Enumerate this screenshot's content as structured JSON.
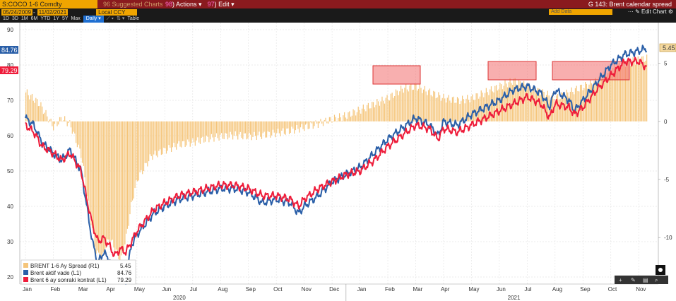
{
  "toolbar": {
    "ticker": "S:COCO 1-6 Comdty",
    "suggested": "96 Suggested Charts",
    "actions_num": "98",
    "actions_label": "Actions",
    "edit_num": "97",
    "edit_label": "Edit",
    "title": "G 143: Brent calendar spread"
  },
  "range": {
    "start": "05/24/2009",
    "end": "11/02/2021",
    "currency": "Local CCY",
    "add_data": "Add Data",
    "edit_chart": "Edit Chart"
  },
  "periods": [
    "1D",
    "3D",
    "1M",
    "6M",
    "YTD",
    "1Y",
    "5Y",
    "Max",
    "Daily"
  ],
  "period_extras": [
    "Table"
  ],
  "accent": "#f0a500",
  "chart_data": {
    "type": "line",
    "left_axis": {
      "ticks": [
        20,
        30,
        40,
        50,
        60,
        70,
        80,
        90
      ],
      "ylim": [
        18,
        92
      ]
    },
    "right_axis": {
      "ticks": [
        "5",
        "0",
        "-5",
        "-10"
      ],
      "ylim": [
        -14,
        8.5
      ]
    },
    "x_months": [
      "Jan",
      "Feb",
      "Mar",
      "Apr",
      "May",
      "Jun",
      "Jul",
      "Aug",
      "Sep",
      "Oct",
      "Nov",
      "Dec",
      "Jan",
      "Feb",
      "Mar",
      "Apr",
      "May",
      "Jun",
      "Jul",
      "Aug",
      "Sep",
      "Oct",
      "Nov"
    ],
    "x_years": [
      "2020",
      "2021"
    ],
    "last_labels": {
      "blue": "84.76",
      "red": "79.29",
      "spread": "5.45"
    },
    "series": [
      {
        "name": "Brent aktif vade (L1)",
        "color": "#2a5fa8",
        "axis": "left",
        "points": [
          [
            0,
            65
          ],
          [
            0.3,
            63
          ],
          [
            0.6,
            58
          ],
          [
            1,
            55
          ],
          [
            1.3,
            53
          ],
          [
            1.6,
            56
          ],
          [
            2,
            50
          ],
          [
            2.2,
            40
          ],
          [
            2.4,
            30
          ],
          [
            2.6,
            24
          ],
          [
            2.8,
            27
          ],
          [
            3,
            25
          ],
          [
            3.2,
            21
          ],
          [
            3.4,
            24
          ],
          [
            3.6,
            19
          ],
          [
            3.8,
            29
          ],
          [
            4,
            32
          ],
          [
            4.3,
            35
          ],
          [
            4.6,
            38
          ],
          [
            5,
            40
          ],
          [
            5.5,
            42
          ],
          [
            6,
            43
          ],
          [
            6.5,
            44
          ],
          [
            7,
            45
          ],
          [
            7.5,
            45
          ],
          [
            8,
            44
          ],
          [
            8.5,
            41
          ],
          [
            9,
            42
          ],
          [
            9.5,
            41
          ],
          [
            9.8,
            38
          ],
          [
            10,
            40
          ],
          [
            10.5,
            43
          ],
          [
            11,
            47
          ],
          [
            11.5,
            49
          ],
          [
            12,
            51
          ],
          [
            12.5,
            55
          ],
          [
            13,
            59
          ],
          [
            13.5,
            62
          ],
          [
            14,
            65
          ],
          [
            14.5,
            63
          ],
          [
            14.8,
            60
          ],
          [
            15,
            64
          ],
          [
            15.5,
            63
          ],
          [
            16,
            66
          ],
          [
            16.5,
            68
          ],
          [
            17,
            70
          ],
          [
            17.5,
            73
          ],
          [
            18,
            74
          ],
          [
            18.5,
            72
          ],
          [
            18.8,
            68
          ],
          [
            19,
            73
          ],
          [
            19.5,
            70
          ],
          [
            19.7,
            67
          ],
          [
            20,
            70
          ],
          [
            20.5,
            75
          ],
          [
            21,
            80
          ],
          [
            21.5,
            83
          ],
          [
            22,
            84
          ],
          [
            22.3,
            84.76
          ]
        ]
      },
      {
        "name": "Brent 6 ay sonraki kontrat (L1)",
        "color": "#ee1c3a",
        "axis": "left",
        "points": [
          [
            0,
            63
          ],
          [
            0.3,
            61
          ],
          [
            0.6,
            57
          ],
          [
            1,
            55
          ],
          [
            1.3,
            53
          ],
          [
            1.6,
            55
          ],
          [
            2,
            50
          ],
          [
            2.2,
            42
          ],
          [
            2.4,
            35
          ],
          [
            2.6,
            30
          ],
          [
            2.8,
            31
          ],
          [
            3,
            29
          ],
          [
            3.2,
            26
          ],
          [
            3.4,
            28
          ],
          [
            3.6,
            27
          ],
          [
            3.8,
            30
          ],
          [
            4,
            33
          ],
          [
            4.3,
            36
          ],
          [
            4.6,
            39
          ],
          [
            5,
            41
          ],
          [
            5.5,
            43
          ],
          [
            6,
            44
          ],
          [
            6.5,
            45
          ],
          [
            7,
            46
          ],
          [
            7.5,
            46
          ],
          [
            8,
            45
          ],
          [
            8.5,
            43
          ],
          [
            9,
            43
          ],
          [
            9.5,
            42
          ],
          [
            9.8,
            40
          ],
          [
            10,
            42
          ],
          [
            10.5,
            45
          ],
          [
            11,
            47
          ],
          [
            11.5,
            49
          ],
          [
            12,
            50
          ],
          [
            12.5,
            53
          ],
          [
            13,
            57
          ],
          [
            13.5,
            60
          ],
          [
            14,
            63
          ],
          [
            14.5,
            62
          ],
          [
            14.8,
            59
          ],
          [
            15,
            62
          ],
          [
            15.5,
            61
          ],
          [
            16,
            63
          ],
          [
            16.5,
            65
          ],
          [
            17,
            67
          ],
          [
            17.5,
            69
          ],
          [
            18,
            71
          ],
          [
            18.5,
            69
          ],
          [
            18.8,
            65
          ],
          [
            19,
            69
          ],
          [
            19.5,
            68
          ],
          [
            19.7,
            66
          ],
          [
            20,
            68
          ],
          [
            20.5,
            73
          ],
          [
            21,
            77
          ],
          [
            21.5,
            81
          ],
          [
            22,
            81
          ],
          [
            22.3,
            79.29
          ]
        ]
      },
      {
        "name": "BRENT 1-6 Ay Spread (R1)",
        "color": "#f5c57a",
        "axis": "right",
        "type": "bar",
        "points": [
          [
            0,
            2.5
          ],
          [
            0.5,
            1.5
          ],
          [
            1,
            -0.5
          ],
          [
            1.3,
            0.3
          ],
          [
            1.6,
            -0.3
          ],
          [
            2,
            -3
          ],
          [
            2.3,
            -8
          ],
          [
            2.5,
            -11
          ],
          [
            2.7,
            -12
          ],
          [
            3,
            -10
          ],
          [
            3.2,
            -11
          ],
          [
            3.4,
            -12
          ],
          [
            3.6,
            -10
          ],
          [
            3.8,
            -7
          ],
          [
            4,
            -5
          ],
          [
            4.5,
            -3
          ],
          [
            5,
            -2.5
          ],
          [
            5.5,
            -2
          ],
          [
            6,
            -1.8
          ],
          [
            6.5,
            -1.5
          ],
          [
            7,
            -1.3
          ],
          [
            7.5,
            -1.2
          ],
          [
            8,
            -1.3
          ],
          [
            8.5,
            -1.2
          ],
          [
            9,
            -1
          ],
          [
            9.5,
            -0.8
          ],
          [
            10,
            -0.5
          ],
          [
            10.5,
            -0.2
          ],
          [
            11,
            0.2
          ],
          [
            11.5,
            0.5
          ],
          [
            12,
            1
          ],
          [
            12.5,
            1.5
          ],
          [
            13,
            2
          ],
          [
            13.5,
            2.8
          ],
          [
            14,
            3
          ],
          [
            14.5,
            2.5
          ],
          [
            15,
            2
          ],
          [
            15.5,
            1.8
          ],
          [
            16,
            2
          ],
          [
            16.5,
            2.5
          ],
          [
            17,
            3
          ],
          [
            17.5,
            3.5
          ],
          [
            18,
            3
          ],
          [
            18.5,
            2.5
          ],
          [
            19,
            2
          ],
          [
            19.5,
            2.5
          ],
          [
            20,
            3
          ],
          [
            20.5,
            3.5
          ],
          [
            21,
            4.5
          ],
          [
            21.5,
            5
          ],
          [
            22,
            5.3
          ],
          [
            22.3,
            5.45
          ]
        ]
      }
    ],
    "legend_placement": "bottom-left"
  },
  "legend": [
    {
      "label": "BRENT 1-6 Ay Spread (R1)",
      "value": "5.45",
      "color": "#f5c57a"
    },
    {
      "label": "Brent aktif vade (L1)",
      "value": "84.76",
      "color": "#2a5fa8"
    },
    {
      "label": "Brent 6 ay sonraki kontrat (L1)",
      "value": "79.29",
      "color": "#ee1c3a"
    }
  ]
}
